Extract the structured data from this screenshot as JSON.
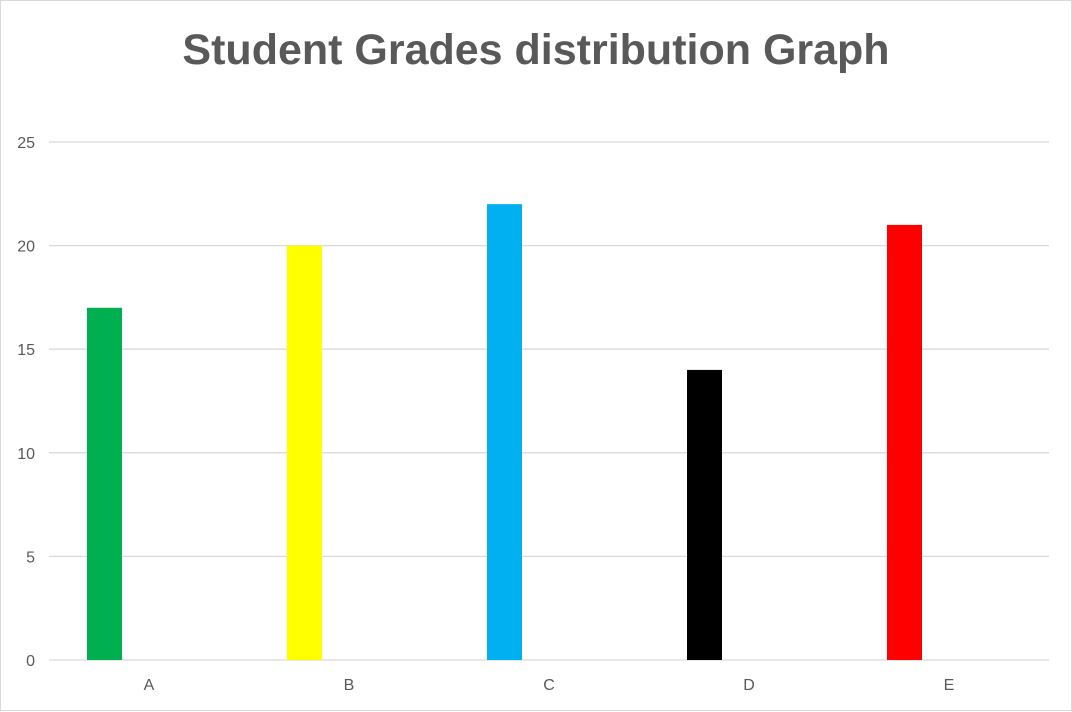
{
  "chart_data": {
    "type": "bar",
    "title": "Student Grades distribution Graph",
    "categories": [
      "A",
      "B",
      "C",
      "D",
      "E"
    ],
    "values": [
      17,
      20,
      22,
      14,
      21
    ],
    "colors": [
      "#00b050",
      "#ffff00",
      "#00b0f0",
      "#000000",
      "#ff0000"
    ],
    "ylim": [
      0,
      25
    ],
    "yticks": [
      0,
      5,
      10,
      15,
      20,
      25
    ],
    "xlabel": "",
    "ylabel": "",
    "grid": true,
    "legend": "none"
  }
}
